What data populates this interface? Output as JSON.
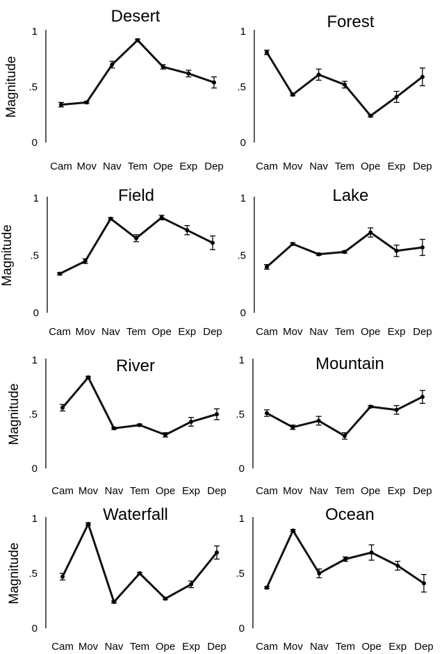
{
  "chart_data": [
    {
      "type": "line",
      "title": "Desert",
      "ylabel": "Magnitude",
      "xlabel": "",
      "categories": [
        "Cam",
        "Mov",
        "Nav",
        "Tem",
        "Ope",
        "Exp",
        "Dep"
      ],
      "values": [
        0.34,
        0.36,
        0.7,
        0.92,
        0.68,
        0.62,
        0.54
      ],
      "errors": [
        0.02,
        0.01,
        0.03,
        0.01,
        0.02,
        0.03,
        0.05
      ],
      "ylim": [
        0,
        1
      ],
      "yticks": [
        "0",
        ".5",
        "1"
      ]
    },
    {
      "type": "line",
      "title": "Forest",
      "ylabel": "",
      "xlabel": "",
      "categories": [
        "Cam",
        "Mov",
        "Nav",
        "Tem",
        "Ope",
        "Exp",
        "Dep"
      ],
      "values": [
        0.81,
        0.43,
        0.61,
        0.52,
        0.24,
        0.41,
        0.59
      ],
      "errors": [
        0.02,
        0.01,
        0.05,
        0.03,
        0.01,
        0.05,
        0.08
      ],
      "ylim": [
        0,
        1
      ],
      "yticks": [
        "0",
        ".5",
        "1"
      ]
    },
    {
      "type": "line",
      "title": "Field",
      "ylabel": "Magnitude",
      "xlabel": "",
      "categories": [
        "Cam",
        "Mov",
        "Nav",
        "Tem",
        "Ope",
        "Exp",
        "Dep"
      ],
      "values": [
        0.34,
        0.45,
        0.82,
        0.65,
        0.83,
        0.72,
        0.61
      ],
      "errors": [
        0.01,
        0.02,
        0.01,
        0.03,
        0.02,
        0.04,
        0.06
      ],
      "ylim": [
        0,
        1
      ],
      "yticks": [
        "0",
        ".5",
        "1"
      ]
    },
    {
      "type": "line",
      "title": "Lake",
      "ylabel": "",
      "xlabel": "",
      "categories": [
        "Cam",
        "Mov",
        "Nav",
        "Tem",
        "Ope",
        "Exp",
        "Dep"
      ],
      "values": [
        0.4,
        0.6,
        0.51,
        0.53,
        0.7,
        0.54,
        0.57
      ],
      "errors": [
        0.02,
        0.01,
        0.01,
        0.01,
        0.04,
        0.05,
        0.07
      ],
      "ylim": [
        0,
        1
      ],
      "yticks": [
        "0",
        ".5",
        "1"
      ]
    },
    {
      "type": "line",
      "title": "River",
      "ylabel": "Magnitude",
      "xlabel": "",
      "categories": [
        "Cam",
        "Mov",
        "Nav",
        "Tem",
        "Ope",
        "Exp",
        "Dep"
      ],
      "values": [
        0.56,
        0.84,
        0.37,
        0.4,
        0.31,
        0.43,
        0.5
      ],
      "errors": [
        0.03,
        0.01,
        0.01,
        0.01,
        0.02,
        0.04,
        0.05
      ],
      "ylim": [
        0,
        1
      ],
      "yticks": [
        "0",
        ".5",
        "1"
      ]
    },
    {
      "type": "line",
      "title": "Mountain",
      "ylabel": "",
      "xlabel": "",
      "categories": [
        "Cam",
        "Mov",
        "Nav",
        "Tem",
        "Ope",
        "Exp",
        "Dep"
      ],
      "values": [
        0.51,
        0.38,
        0.44,
        0.3,
        0.57,
        0.54,
        0.66
      ],
      "errors": [
        0.03,
        0.02,
        0.04,
        0.03,
        0.01,
        0.04,
        0.06
      ],
      "ylim": [
        0,
        1
      ],
      "yticks": [
        "0",
        ".5",
        "1"
      ]
    },
    {
      "type": "line",
      "title": "Waterfall",
      "ylabel": "Magnitude",
      "xlabel": "",
      "categories": [
        "Cam",
        "Mov",
        "Nav",
        "Tem",
        "Ope",
        "Exp",
        "Dep"
      ],
      "values": [
        0.47,
        0.95,
        0.24,
        0.5,
        0.27,
        0.4,
        0.69
      ],
      "errors": [
        0.03,
        0.01,
        0.01,
        0.01,
        0.01,
        0.03,
        0.06
      ],
      "ylim": [
        0,
        1
      ],
      "yticks": [
        "0",
        ".5",
        "1"
      ]
    },
    {
      "type": "line",
      "title": "Ocean",
      "ylabel": "",
      "xlabel": "",
      "categories": [
        "Cam",
        "Mov",
        "Nav",
        "Tem",
        "Ope",
        "Exp",
        "Dep"
      ],
      "values": [
        0.37,
        0.89,
        0.5,
        0.63,
        0.69,
        0.57,
        0.41
      ],
      "errors": [
        0.01,
        0.01,
        0.04,
        0.02,
        0.07,
        0.04,
        0.08
      ],
      "ylim": [
        0,
        1
      ],
      "yticks": [
        "0",
        ".5",
        "1"
      ]
    }
  ]
}
